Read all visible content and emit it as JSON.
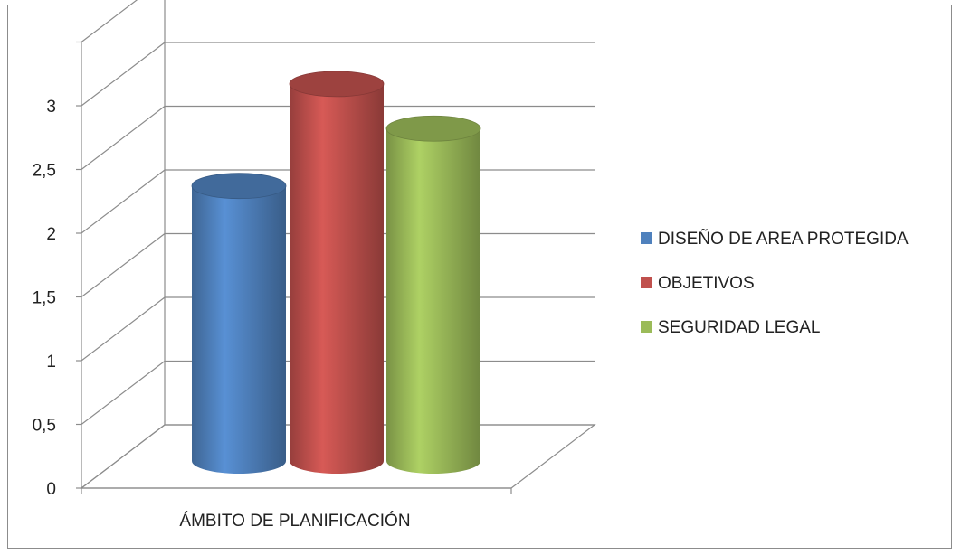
{
  "chart_data": {
    "type": "bar",
    "style": "3d-cylinder",
    "categories": [
      "ÁMBITO DE PLANIFICACIÓN"
    ],
    "series": [
      {
        "name": "DISEÑO DE AREA PROTEGIDA",
        "values": [
          2.3
        ],
        "color": "#4f81bd"
      },
      {
        "name": "OBJETIVOS",
        "values": [
          3.1
        ],
        "color": "#c0504d"
      },
      {
        "name": "SEGURIDAD LEGAL",
        "values": [
          2.75
        ],
        "color": "#9bbb59"
      }
    ],
    "ylim": [
      0,
      3.5
    ],
    "yticks": [
      "0",
      "0,5",
      "1",
      "1,5",
      "2",
      "2,5",
      "3"
    ],
    "grid": true,
    "legend": "right",
    "title": "",
    "xlabel": "",
    "ylabel": ""
  }
}
